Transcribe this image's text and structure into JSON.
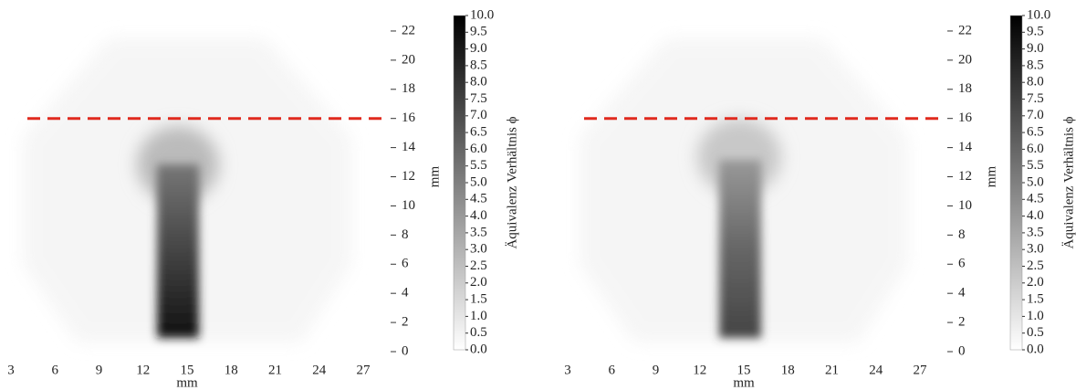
{
  "chart_data": [
    {
      "type": "heatmap",
      "xlabel": "mm",
      "ylabel": "mm",
      "colorbar_label": "Äquivalenz Verhältnis ϕ",
      "xlim": [
        2.25,
        28.37
      ],
      "ylim": [
        0,
        23
      ],
      "xticks": [
        3,
        6,
        9,
        12,
        15,
        18,
        21,
        24,
        27
      ],
      "yticks": [
        0,
        2,
        4,
        6,
        8,
        10,
        12,
        14,
        16,
        18,
        20,
        22
      ],
      "clim": [
        0,
        10
      ],
      "colormap": [
        "#ffffff",
        "#000000"
      ],
      "cticks": [
        {
          "value": 0,
          "label": "0.0"
        },
        0.5,
        {
          "value": 1,
          "label": "1.0"
        },
        1.5,
        {
          "value": 2,
          "label": "2.0"
        },
        2.5,
        {
          "value": 3,
          "label": "3.0"
        },
        3.5,
        {
          "value": 4,
          "label": "4.0"
        },
        4.5,
        {
          "value": 5,
          "label": "5.0"
        },
        5.5,
        {
          "value": 6,
          "label": "6.0"
        },
        6.5,
        {
          "value": 7,
          "label": "7.0"
        },
        7.5,
        {
          "value": 8,
          "label": "8.0"
        },
        8.5,
        {
          "value": 9,
          "label": "9.0"
        },
        9.5,
        {
          "value": 10,
          "label": "10.0"
        }
      ],
      "reference_line": {
        "y": 16,
        "color": "#e02a1e"
      }
    },
    {
      "type": "heatmap",
      "xlabel": "mm",
      "ylabel": "mm",
      "colorbar_label": "Äquivalenz Verhältnis ϕ",
      "xlim": [
        2.25,
        28.37
      ],
      "ylim": [
        0,
        23
      ],
      "xticks": [
        3,
        6,
        9,
        12,
        15,
        18,
        21,
        24,
        27
      ],
      "yticks": [
        0,
        2,
        4,
        6,
        8,
        10,
        12,
        14,
        16,
        18,
        20,
        22
      ],
      "clim": [
        0,
        10
      ],
      "colormap": [
        "#ffffff",
        "#000000"
      ],
      "cticks": [
        {
          "value": 0,
          "label": "0.0"
        },
        0.5,
        {
          "value": 1,
          "label": "1.0"
        },
        1.5,
        {
          "value": 2,
          "label": "2.0"
        },
        2.5,
        {
          "value": 3,
          "label": "3.0"
        },
        3.5,
        {
          "value": 4,
          "label": "4.0"
        },
        4.5,
        {
          "value": 5,
          "label": "5.0"
        },
        5.5,
        {
          "value": 6,
          "label": "6.0"
        },
        6.5,
        {
          "value": 7,
          "label": "7.0"
        },
        7.5,
        {
          "value": 8,
          "label": "8.0"
        },
        8.5,
        {
          "value": 9,
          "label": "9.0"
        },
        9.5,
        {
          "value": 10,
          "label": "10.0"
        }
      ],
      "reference_line": {
        "y": 16,
        "color": "#e02a1e"
      }
    }
  ]
}
